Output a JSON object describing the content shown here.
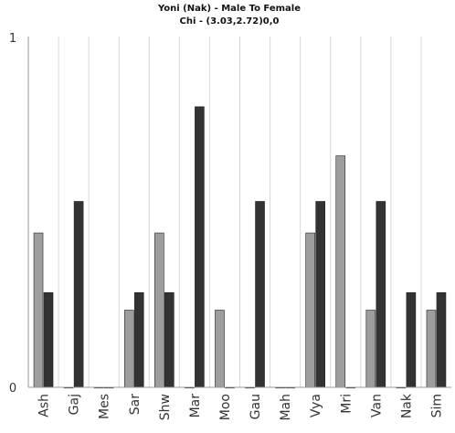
{
  "chart_data": {
    "type": "bar",
    "title": "Yoni (Nak) - Male To Female",
    "subtitle": "Chi - (3.03,2.72)0,0",
    "xlabel": "",
    "ylabel": "",
    "ylim": [
      0,
      1
    ],
    "yticks": [
      "0",
      "1"
    ],
    "grid": "vertical",
    "categories": [
      "Ash",
      "Gaj",
      "Mes",
      "Sar",
      "Shw",
      "Mar",
      "Moo",
      "Gau",
      "Mah",
      "Vya",
      "Mri",
      "Van",
      "Nak",
      "Sim"
    ],
    "series": [
      {
        "values": [
          0.44,
          0,
          0,
          0.22,
          0.44,
          0,
          0.22,
          0,
          0,
          0.44,
          0.66,
          0.22,
          0,
          0.22
        ]
      },
      {
        "values": [
          0.27,
          0.53,
          0,
          0.27,
          0.27,
          0.8,
          0,
          0.53,
          0,
          0.53,
          0,
          0.53,
          0.27,
          0.27
        ]
      }
    ],
    "colors": [
      "#9e9e9e",
      "#333333"
    ]
  }
}
